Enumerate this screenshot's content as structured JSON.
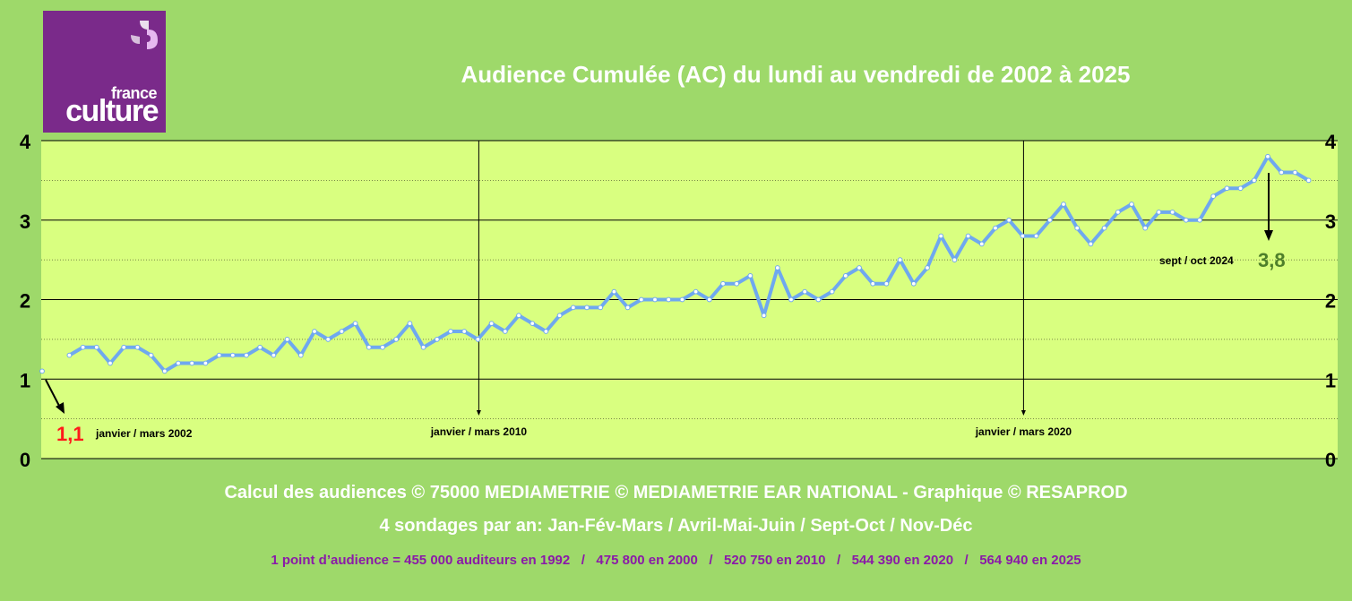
{
  "logo": {
    "top_text": "france",
    "main_text": "culture"
  },
  "title": "Audience Cumulée (AC) du lundi au vendredi de 2002 à 2025",
  "footer": {
    "line1": "Calcul des audiences © 75000 MEDIAMETRIE © MEDIAMETRIE EAR NATIONAL - Graphique © RESAPROD",
    "line2": "4 sondages par an: Jan-Fév-Mars / Avril-Mai-Juin / Sept-Oct / Nov-Déc",
    "line3": "1 point d’audience = 455 000 auditeurs en 1992   /   475 800 en 2000   /   520 750 en 2010   /   544 390 en 2020   /   564 940 en 2025"
  },
  "colors": {
    "background": "#9ed96a",
    "plot_area": "#d9ff80",
    "line": "#6fa8ef",
    "logo": "#7a2a8a",
    "start_value": "#ff1a1a",
    "end_value": "#4e7f2a",
    "footer_note": "#8a1aa8"
  },
  "chart_data": {
    "type": "line",
    "title": "Audience Cumulée (AC) du lundi au vendredi de 2002 à 2025",
    "xlabel": "",
    "ylabel": "",
    "ylim": [
      0,
      4
    ],
    "yticks": [
      "0",
      "1",
      "2",
      "3",
      "4"
    ],
    "grid": "horizontal major solid lines, minor dotted lines",
    "values": [
      1.1,
      null,
      1.3,
      1.4,
      1.4,
      1.2,
      1.4,
      1.4,
      1.3,
      1.1,
      1.2,
      1.2,
      1.2,
      1.3,
      1.3,
      1.3,
      1.4,
      1.3,
      1.5,
      1.3,
      1.6,
      1.5,
      1.6,
      1.7,
      1.4,
      1.4,
      1.5,
      1.7,
      1.4,
      1.5,
      1.6,
      1.6,
      1.5,
      1.7,
      1.6,
      1.8,
      1.7,
      1.6,
      1.8,
      1.9,
      1.9,
      1.9,
      2.1,
      1.9,
      2.0,
      2.0,
      2.0,
      2.0,
      2.1,
      2.0,
      2.2,
      2.2,
      2.3,
      1.8,
      2.4,
      2.0,
      2.1,
      2.0,
      2.1,
      2.3,
      2.4,
      2.2,
      2.2,
      2.5,
      2.2,
      2.4,
      2.8,
      2.5,
      2.8,
      2.7,
      2.9,
      3.0,
      2.8,
      2.8,
      3.0,
      3.2,
      2.9,
      2.7,
      2.9,
      3.1,
      3.2,
      2.9,
      3.1,
      3.1,
      3.0,
      3.0,
      3.3,
      3.4,
      3.4,
      3.5,
      3.8,
      3.6,
      3.6,
      3.5
    ],
    "annotations": [
      {
        "label": "janvier / mars 2002",
        "index": 0,
        "value_label": "1,1"
      },
      {
        "label": "janvier / mars 2010",
        "index": 32
      },
      {
        "label": "janvier / mars 2020",
        "index": 72
      },
      {
        "label": "sept / oct 2024",
        "index": 90,
        "value_label": "3,8"
      }
    ]
  }
}
